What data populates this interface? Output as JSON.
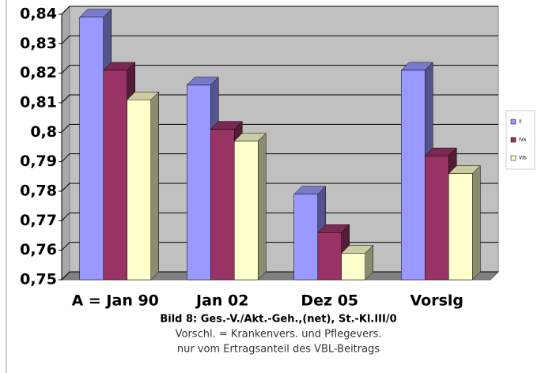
{
  "chart_data": {
    "type": "bar3d",
    "title": "Bild 8: Ges.-V./Akt.-Geh.,(net), St.-Kl.III/0",
    "notes": [
      "Vorschl. = Krankenvers. und Pflegevers.",
      "nur vom Ertragsanteil des VBL-Beitrags"
    ],
    "categories": [
      "A = Jan 90",
      "Jan 02",
      "Dez 05",
      "Vorslg"
    ],
    "series": [
      {
        "name": "II",
        "color": "#9999ff",
        "values": [
          0.839,
          0.816,
          0.779,
          0.821
        ]
      },
      {
        "name": "IVa",
        "color": "#993366",
        "values": [
          0.821,
          0.801,
          0.766,
          0.792
        ]
      },
      {
        "name": "VIb",
        "color": "#ffffcc",
        "values": [
          0.811,
          0.797,
          0.759,
          0.786
        ]
      }
    ],
    "ylim": [
      0.75,
      0.84
    ],
    "yticks": [
      {
        "value": 0.75,
        "label": "0,75"
      },
      {
        "value": 0.76,
        "label": "0,76"
      },
      {
        "value": 0.77,
        "label": "0,77"
      },
      {
        "value": 0.78,
        "label": "0,78"
      },
      {
        "value": 0.79,
        "label": "0,79"
      },
      {
        "value": 0.8,
        "label": "0,8"
      },
      {
        "value": 0.81,
        "label": "0,81"
      },
      {
        "value": 0.82,
        "label": "0,82"
      },
      {
        "value": 0.83,
        "label": "0,83"
      },
      {
        "value": 0.84,
        "label": "0,84"
      }
    ],
    "grid": true,
    "legend": "right"
  }
}
